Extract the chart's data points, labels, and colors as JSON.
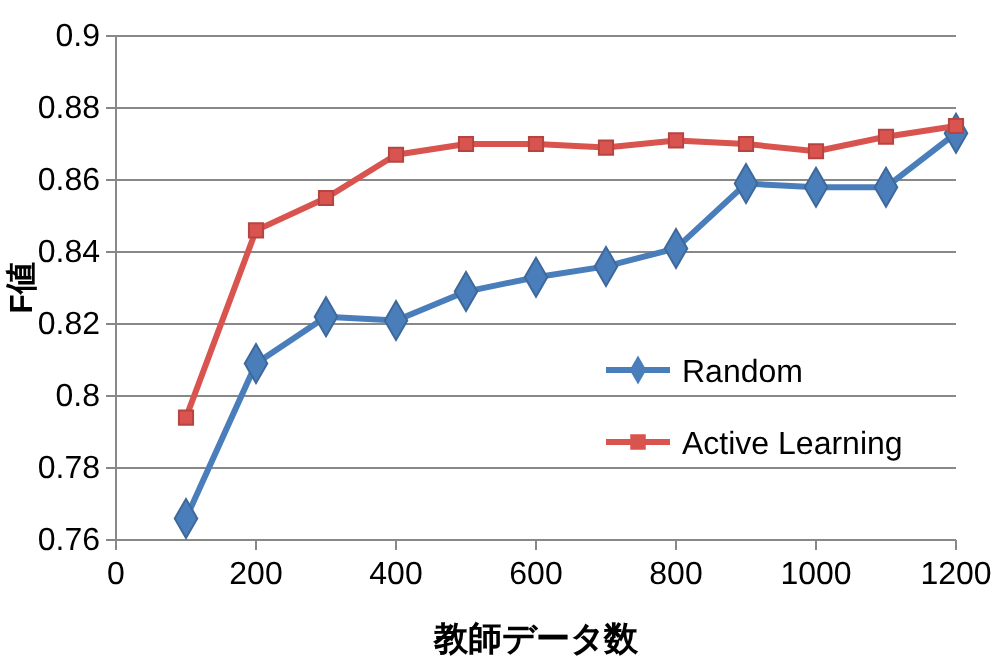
{
  "chart_data": {
    "type": "line",
    "xlabel": "教師データ数",
    "ylabel": "F値",
    "x": [
      100,
      200,
      300,
      400,
      500,
      600,
      700,
      800,
      900,
      1000,
      1100,
      1200
    ],
    "xlim": [
      0,
      1200
    ],
    "xticks": [
      0,
      200,
      400,
      600,
      800,
      1000,
      1200
    ],
    "ylim": [
      0.76,
      0.9
    ],
    "yticks": [
      0.76,
      0.78,
      0.8,
      0.82,
      0.84,
      0.86,
      0.88,
      0.9
    ],
    "grid": "y",
    "legend": "bottom right",
    "series": [
      {
        "name": "Random",
        "color": "#4a7ebb",
        "marker": "diamond",
        "values": [
          0.766,
          0.809,
          0.822,
          0.821,
          0.829,
          0.833,
          0.836,
          0.841,
          0.859,
          0.858,
          0.858,
          0.873
        ]
      },
      {
        "name": "Active Learning",
        "color": "#d9534f",
        "marker": "square",
        "values": [
          0.794,
          0.846,
          0.855,
          0.867,
          0.87,
          0.87,
          0.869,
          0.871,
          0.87,
          0.868,
          0.872,
          0.875
        ]
      }
    ]
  }
}
